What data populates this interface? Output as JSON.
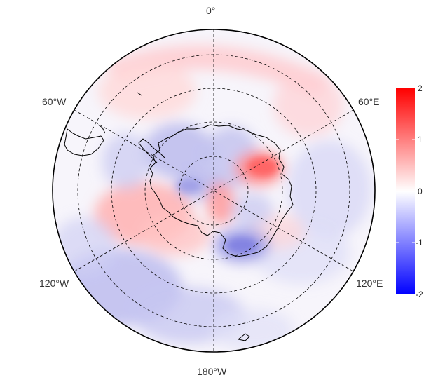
{
  "map": {
    "projection": "south-polar-stereographic",
    "meridian_labels": {
      "top": "0°",
      "upper_left": "60°W",
      "upper_right": "60°E",
      "lower_left": "120°W",
      "lower_right": "120°E",
      "bottom": "180°W"
    },
    "graticule": "dashed",
    "outline_color": "#000000"
  },
  "colorbar": {
    "ticks": [
      "2",
      "1",
      "0",
      "-1",
      "-2"
    ],
    "range": [
      -2,
      2
    ],
    "colors": {
      "low": "#0000ff",
      "mid": "#ffffff",
      "high": "#ff0000"
    }
  }
}
